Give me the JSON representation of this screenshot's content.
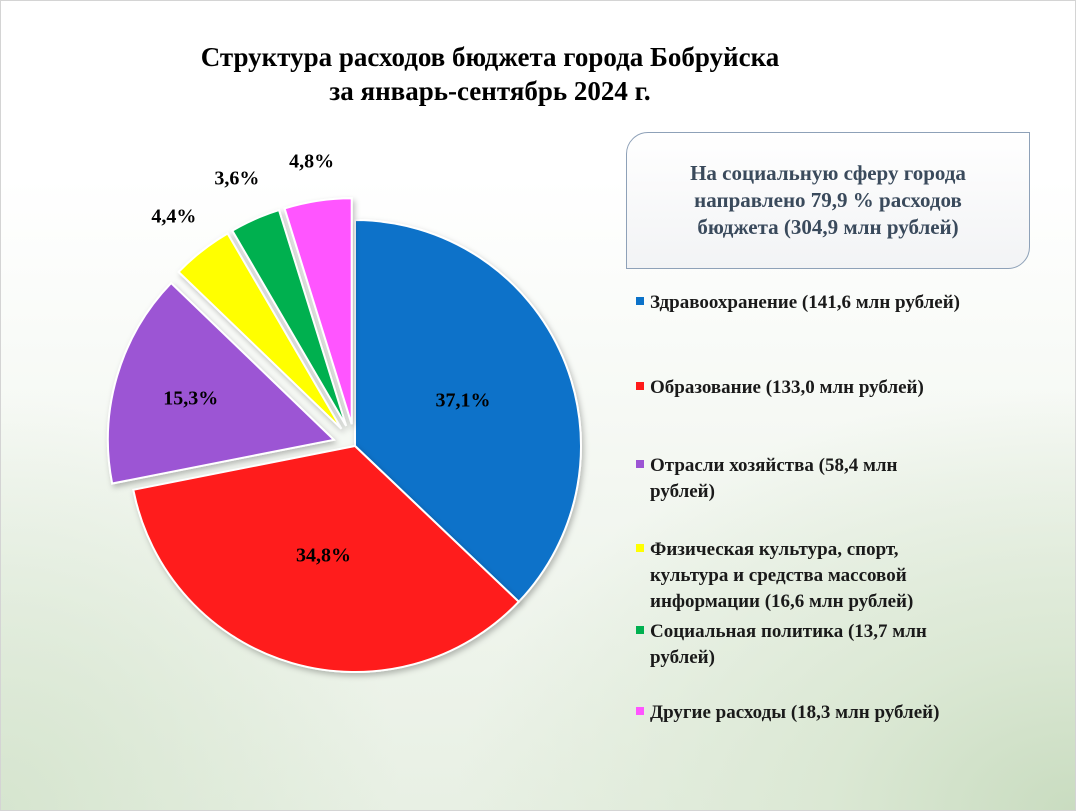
{
  "header": {
    "title_line1": "Структура расходов бюджета города Бобруйска",
    "title_line2": "за январь-сентябрь 2024 г."
  },
  "info_box": {
    "line1": "На социальную сферу города",
    "line2": "направлено 79,9  % расходов",
    "line3": "бюджета (304,9 млн рублей)"
  },
  "legend": {
    "items": [
      {
        "lines": [
          "Здравоохранение (141,6 млн рублей)"
        ],
        "color": "#0b72c9"
      },
      {
        "lines": [
          "Образование (133,0 млн рублей)"
        ],
        "color": "#ff1a1a"
      },
      {
        "lines": [
          "Отрасли хозяйства (58,4 млн",
          "рублей)"
        ],
        "color": "#9c55d4"
      },
      {
        "lines": [
          "Физическая культура, спорт,",
          "культура и средства массовой",
          "информации (16,6 млн рублей)"
        ],
        "color": "#ffff00"
      },
      {
        "lines": [
          "Социальная политика (13,7 млн",
          "рублей)"
        ],
        "color": "#00b050"
      },
      {
        "lines": [
          "Другие расходы (18,3 млн рублей)"
        ],
        "color": "#ff55ff"
      }
    ]
  },
  "chart_data": {
    "type": "pie",
    "title": "Структура расходов бюджета города Бобруйска за январь-сентябрь 2024 г.",
    "slices": [
      {
        "name": "Здравоохранение (141,6 млн рублей)",
        "value": 37.1,
        "label": "37,1%",
        "color": "#0b72c9",
        "exploded": false
      },
      {
        "name": "Образование (133,0 млн рублей)",
        "value": 34.8,
        "label": "34,8%",
        "color": "#ff1a1a",
        "exploded": false
      },
      {
        "name": "Отрасли хозяйства (58,4 млн рублей)",
        "value": 15.3,
        "label": "15,3%",
        "color": "#9c55d4",
        "exploded": true
      },
      {
        "name": "Физическая культура, спорт, культура и средства массовой информации (16,6 млн рублей)",
        "value": 4.4,
        "label": "4,4%",
        "color": "#ffff00",
        "exploded": true
      },
      {
        "name": "Социальная политика (13,7 млн рублей)",
        "value": 3.6,
        "label": "3,6%",
        "color": "#00b050",
        "exploded": true
      },
      {
        "name": "Другие расходы (18,3 млн рублей)",
        "value": 4.8,
        "label": "4,8%",
        "color": "#ff55ff",
        "exploded": true
      }
    ],
    "legend_position": "right"
  }
}
